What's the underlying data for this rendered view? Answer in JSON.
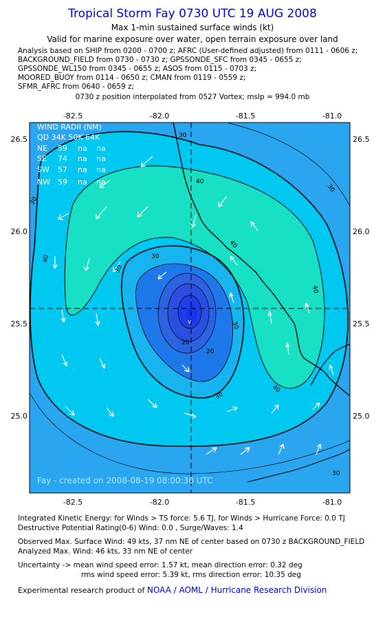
{
  "header": {
    "title": "Tropical Storm Fay 0730 UTC 19 AUG 2008",
    "subtitle1": "Max 1-min sustained surface winds (kt)",
    "subtitle2": "Valid for marine exposure over water, open terrain exposure over land",
    "analysis_lines": [
      "Analysis based on  SHIP from 0200 - 0700 z;  AFRC (User-defined adjusted) from 0111 - 0606 z;",
      "BACKGROUND_FIELD from 0730 - 0730 z;  GPSSONDE_SFC from 0345 - 0655 z;",
      "GPSSONDE_WL150 from 0345 - 0655 z;  ASOS from 0115 - 0703 z;",
      "MOORED_BUOY from 0114 - 0650 z;  CMAN from 0119 - 0559 z;",
      "SFMR_AFRC from 0640 - 0659 z;"
    ],
    "position_line": "0730 z position interpolated from 0527 Vortex; mslp = 994.0 mb"
  },
  "map": {
    "lon_ticks": [
      "-82.5",
      "-82.0",
      "-81.5",
      "-81.0"
    ],
    "lat_ticks": [
      "26.5",
      "26.0",
      "25.5",
      "25.0"
    ],
    "contour_labels": [
      "30",
      "30",
      "30",
      "40",
      "40",
      "40",
      "40",
      "30",
      "20",
      "30",
      "30",
      "40",
      "30",
      "20",
      "30"
    ],
    "wind_radii": {
      "title": "WIND RADII (NM)",
      "header": "QD 34K 50K 64K",
      "rows": [
        {
          "qd": "NE",
          "k34": "59",
          "k50": "na",
          "k64": "na"
        },
        {
          "qd": "SE",
          "k34": "74",
          "k50": "na",
          "k64": "na"
        },
        {
          "qd": "SW",
          "k34": "57",
          "k50": "na",
          "k64": "na"
        },
        {
          "qd": "NW",
          "k34": "59",
          "k50": "na",
          "k64": "na"
        }
      ]
    },
    "created": "Fay - created on 2008-08-19 08:00:30 UTC",
    "colors": {
      "c20": "#1f6fe6",
      "c30": "#1ab0f0",
      "c40": "#00c8f0",
      "c50": "#18e0c4"
    }
  },
  "footer": {
    "ike": "Integrated Kinetic Energy:  for Winds > TS force: 5.6 TJ,  for Winds > Hurricane Force: 0.0 TJ",
    "dpr": "Destructive Potential Rating(0-6)   Wind: 0.0 , Surge/Waves: 1.4",
    "observed": "Observed Max. Surface Wind: 49 kts, 37 nm NE of center based on 0730 z BACKGROUND_FIELD",
    "analyzed": "Analyzed Max. Wind: 46 kts, 33 nm NE of center",
    "unc1": "Uncertainty -> mean wind speed error: 1.57 kt,   mean direction error: 0.32 deg",
    "unc2": "rms wind speed error: 5.39 kt,   rms direction error: 10.35 deg",
    "product_prefix": "Experimental research product of",
    "product_org": "NOAA / AOML / Hurricane Research Division"
  }
}
